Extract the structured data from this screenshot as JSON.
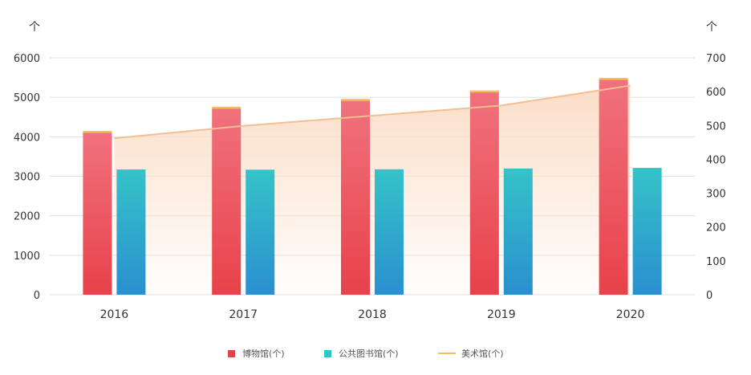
{
  "chart_data": {
    "type": "bar",
    "categories": [
      "2016",
      "2017",
      "2018",
      "2019",
      "2020"
    ],
    "left_axis": {
      "unit_label": "个",
      "ticks": [
        0,
        1000,
        2000,
        3000,
        4000,
        5000,
        6000
      ],
      "tick_labels": [
        "0",
        "1000",
        "2000",
        "3000",
        "4000",
        "5000",
        "6000"
      ],
      "ylim": [
        0,
        6000
      ]
    },
    "right_axis": {
      "unit_label": "个",
      "ticks": [
        0,
        100,
        200,
        300,
        400,
        500,
        600,
        700
      ],
      "tick_labels": [
        "0",
        "100",
        "200",
        "300",
        "400",
        "500",
        "600",
        "700"
      ],
      "ylim": [
        0,
        700
      ]
    },
    "series": [
      {
        "name": "博物馆(个)",
        "type": "bar",
        "axis": "left",
        "values": [
          4109,
          4721,
          4918,
          5132,
          5452
        ]
      },
      {
        "name": "公共图书馆(个)",
        "type": "bar",
        "axis": "left",
        "values": [
          3172,
          3166,
          3176,
          3196,
          3212
        ]
      },
      {
        "name": "美术馆(个)",
        "type": "line",
        "axis": "right",
        "values": [
          462,
          499,
          529,
          559,
          618
        ]
      }
    ],
    "grid": true,
    "legend": "bottom-center",
    "colors": {
      "museum_top": "#f0727d",
      "museum_bottom": "#e8414a",
      "museum_cap": "#f3c05a",
      "library_top": "#35c3c8",
      "library_bottom": "#2a8fcf",
      "art_line": "#f2bf92",
      "art_area": "#fbdcc5",
      "grid": "#e0e0e0",
      "axis_text": "#333333"
    }
  }
}
